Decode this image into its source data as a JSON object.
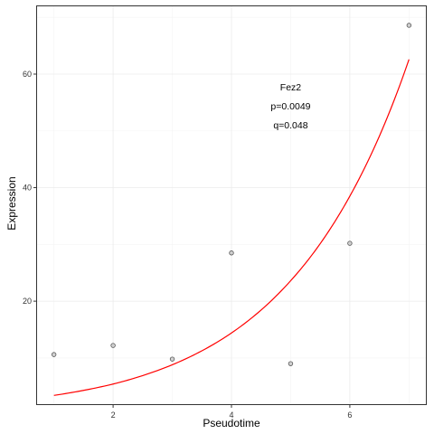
{
  "chart_data": {
    "type": "scatter",
    "title": "",
    "xlabel": "Pseudotime",
    "ylabel": "Expression",
    "xlim": [
      0.7,
      7.3
    ],
    "ylim": [
      1.7,
      72.1
    ],
    "x_ticks": [
      2,
      4,
      6
    ],
    "y_ticks": [
      20,
      40,
      60
    ],
    "x_tick_labels": [
      "2",
      "4",
      "6"
    ],
    "y_tick_labels": [
      "20",
      "40",
      "60"
    ],
    "grid": true,
    "legend": "none",
    "points": [
      {
        "x": 1,
        "y": 10.6
      },
      {
        "x": 2,
        "y": 12.2
      },
      {
        "x": 3,
        "y": 9.8
      },
      {
        "x": 4,
        "y": 28.5
      },
      {
        "x": 5,
        "y": 9.0
      },
      {
        "x": 6,
        "y": 30.2
      },
      {
        "x": 7,
        "y": 68.6
      }
    ],
    "fit_curve": [
      {
        "x": 1,
        "y": 3.4
      },
      {
        "x": 2,
        "y": 5.4
      },
      {
        "x": 3,
        "y": 8.8
      },
      {
        "x": 4,
        "y": 14.4
      },
      {
        "x": 5,
        "y": 23.6
      },
      {
        "x": 6,
        "y": 38.5
      },
      {
        "x": 7,
        "y": 62.6
      }
    ],
    "annotations": [
      "Fez2",
      "p=0.0049",
      "q=0.048"
    ],
    "annotation_anchor": {
      "x": 5.0,
      "y": 57.8
    },
    "colors": {
      "curve": "#ff0000",
      "point_stroke": "#555555",
      "point_fill": "#b4b4b4",
      "panel_border": "#333333",
      "grid": "#ebebeb"
    }
  }
}
